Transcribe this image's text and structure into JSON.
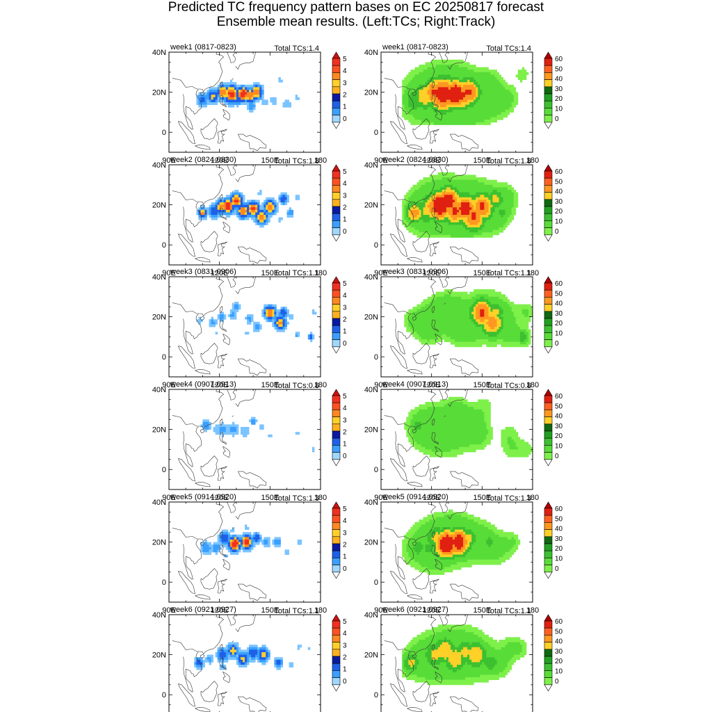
{
  "title": {
    "line1": "Predicted TC frequency pattern bases on EC 20250817 forecast",
    "line2": "Ensemble mean results.  (Left:TCs;  Right:Track)"
  },
  "axes": {
    "lat_ticks": [
      "40N",
      "20N",
      "0"
    ],
    "lon_ticks": [
      "90E",
      "120E",
      "150E",
      "180"
    ],
    "lon_range": [
      90,
      180
    ],
    "lat_range": [
      -10,
      40
    ]
  },
  "colorbars": {
    "tcs": {
      "labels": [
        "0",
        "1",
        "2",
        "3",
        "4",
        "5"
      ],
      "colors": [
        "#ffffff",
        "#9fd7ff",
        "#3aa0ff",
        "#1e60e8",
        "#0a1aa0",
        "#ffb020",
        "#ffd028",
        "#ff8820",
        "#ff5020",
        "#f03020",
        "#d01010"
      ]
    },
    "track": {
      "labels": [
        "0",
        "10",
        "20",
        "30",
        "40",
        "50",
        "60"
      ],
      "colors": [
        "#ffffff",
        "#7ef04a",
        "#58dc38",
        "#3cc030",
        "#20a020",
        "#106810",
        "#ffd028",
        "#ff9820",
        "#ff6020",
        "#e02010",
        "#b00000"
      ]
    }
  },
  "panels": [
    {
      "week": "week1 (0817-0823)",
      "total": "Total TCs:1.4"
    },
    {
      "week": "week2 (0824-0830)",
      "total": "Total TCs:1.8"
    },
    {
      "week": "week3 (0831-0906)",
      "total": "Total TCs:1.1"
    },
    {
      "week": "week4 (0907-0913)",
      "total": "Total TCs:0.8"
    },
    {
      "week": "week5 (0914-0920)",
      "total": "Total TCs:1.3"
    },
    {
      "week": "week6 (0921-0927)",
      "total": "Total TCs:1.1"
    }
  ]
}
